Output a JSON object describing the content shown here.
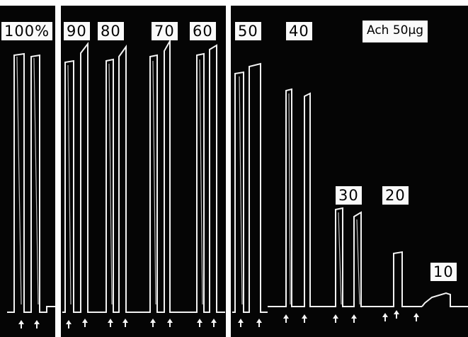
{
  "labels": {
    "pct_100": "100%",
    "pct_90": "90",
    "pct_80": "80",
    "pct_70": "70",
    "pct_60": "60",
    "pct_50": "50",
    "pct_40": "40",
    "pct_30": "30",
    "pct_20": "20",
    "pct_10": "10",
    "ach": "Ach 50µg"
  },
  "colors": {
    "background": "#050505",
    "trace": "#f2f2f2",
    "label_box": "#fafafa"
  }
}
